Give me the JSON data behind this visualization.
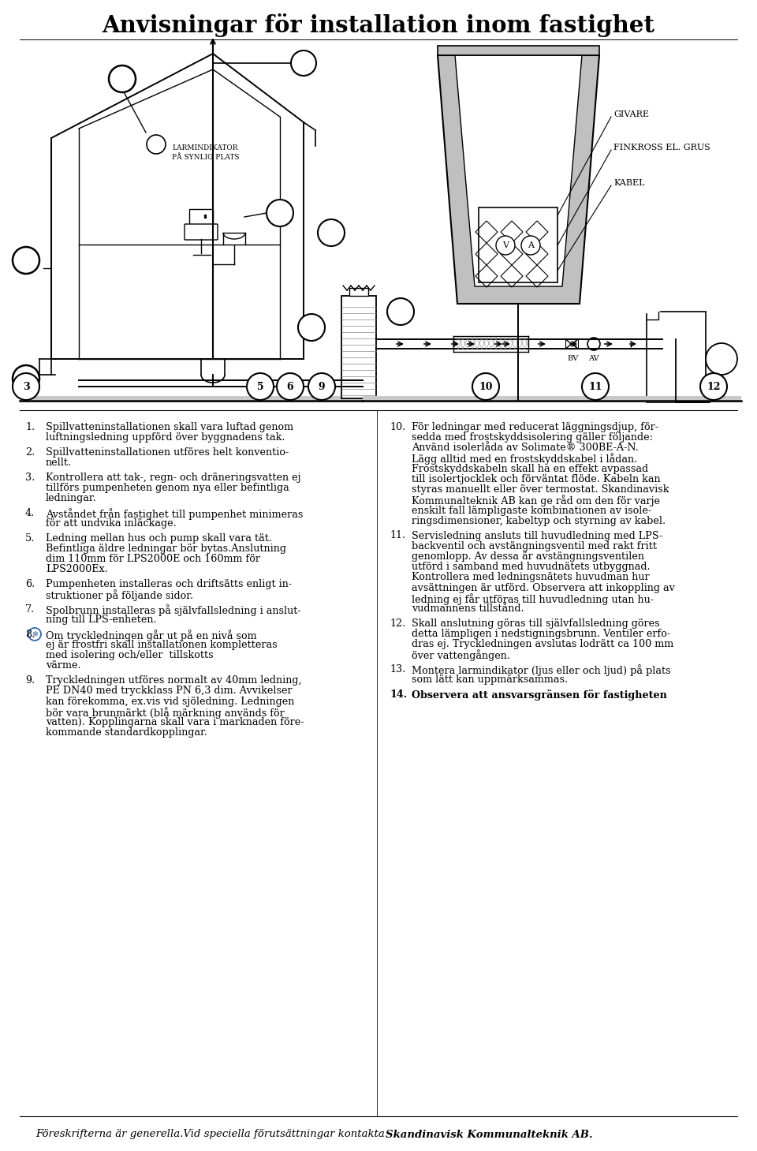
{
  "title": "Anvisningar för installation inom fastighet",
  "title_fontsize": 21,
  "title_fontweight": "bold",
  "background_color": "#ffffff",
  "text_color": "#000000",
  "footer_italic": "Föreskrifterna är generella.Vid speciella förutsättningar kontakta ",
  "footer_bold": "Skandinavisk Kommunalteknik AB.",
  "left_items": [
    {
      "num": "1.",
      "text": "Spillvatteninstallationen skall vara luftad genom\nluftningsledning uppförd över byggnadens tak."
    },
    {
      "num": "2.",
      "text": "Spillvatteninstallationen utföres helt konventio-\nnellt."
    },
    {
      "num": "3.",
      "text": "Kontrollera att tak-, regn- och dräneringsvatten ej\ntillförs pumpenheten genom nya eller befintliga\nledningar."
    },
    {
      "num": "4.",
      "text": "Avståndet från fastighet till pumpenhet minimeras\nför att undvika inläckage."
    },
    {
      "num": "5.",
      "text": "Ledning mellan hus och pump skall vara tät.\nBefintliga äldre ledningar bör bytas.Anslutning\ndim 110mm för LPS2000E och 160mm för\nLPS2000Ex."
    },
    {
      "num": "6.",
      "text": "Pumpenheten installeras och driftsätts enligt in-\nstruktioner på följande sidor."
    },
    {
      "num": "7.",
      "text": "Spolbrunn installeras på självfallsledning i anslut-\nning till LPS-enheten."
    },
    {
      "num": "8.",
      "text": "Om tryckledningen går ut på en nivå som\nej är frostfri skall installationen kompletteras\nmed isolering och/eller  tillskotts\nvärme.",
      "has_symbol": true
    },
    {
      "num": "9.",
      "text": "Tryckledningen utföres normalt av 40mm ledning,\nPE DN40 med tryckklass PN 6,3 dim. Avvikelser\nkan förekomma, ex.vis vid sjöledning. Ledningen\nbör vara brunmärkt (blå märkning används för\nvatten). Kopplingarna skall vara i marknaden före-\nkommande standardkopplingar."
    }
  ],
  "right_items": [
    {
      "num": "10.",
      "text": "För ledningar med reducerat läggningsdjup, för-\nsedda med frostskyddsisolering gäller följande:\nAnvänd isolerlåda av Solimate® 300BE-A-N.\nLägg alltid med en frostskyddskabel i lådan.\nFrostskyddskabeln skall ha en effekt avpassad\ntill isolertjocklek och förväntat flöde. Kabeln kan\nstyras manuellt eller över termostat. Skandinavisk\nKommunalteknik AB kan ge råd om den för varje\nenskilt fall lämpligaste kombinationen av isole-\nringsdimensioner, kabeltyp och styrning av kabel."
    },
    {
      "num": "11.",
      "text": "Servisledning ansluts till huvudledning med LPS-\nbackventil och avstängningsventil med rakt fritt\ngenomlopp. Av dessa är avstängningsventilen\nutförd i samband med huvudnätets utbyggnad.\nKontrollera med ledningsnätets huvudman hur\navsättningen är utförd. Observera att inkoppling av\nledning ej får utföras till huvudledning utan hu-\nvudmannens tillstånd."
    },
    {
      "num": "12.",
      "text": "Skall anslutning göras till självfallsledning göres\ndetta lämpligen i nedstigningsbrunn. Ventiler erfo-\ndras ej. Tryckledningen avslutas lodrätt ca 100 mm\növer vattengången."
    },
    {
      "num": "13.",
      "text": "Montera larmindikator (ljus eller och ljud) på plats\nsom lätt kan uppmärksammas."
    },
    {
      "num": "14.",
      "text": "Observera att ansvarsgränsen för fastigheten",
      "bold": true
    }
  ],
  "font_size_body": 9.2
}
